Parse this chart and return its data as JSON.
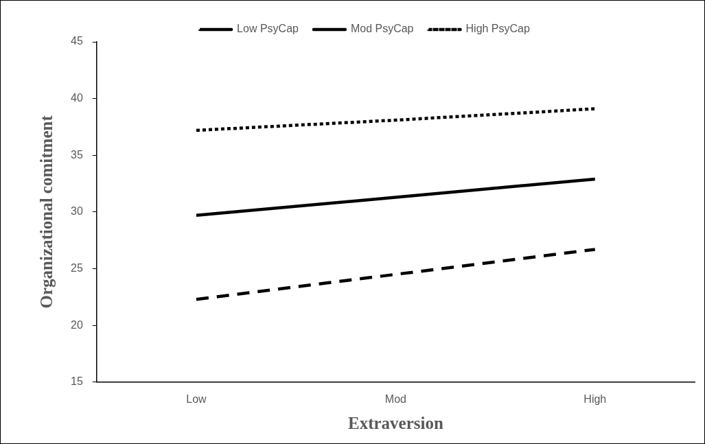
{
  "chart_data": {
    "type": "line",
    "xlabel": "Extraversion",
    "ylabel": "Organizational comitment",
    "categories": [
      "Low",
      "Mod",
      "High"
    ],
    "series": [
      {
        "name": "Low PsyCap",
        "color": "#000000",
        "line_style": "dashed",
        "values": [
          22.3,
          24.5,
          26.7
        ]
      },
      {
        "name": "Mod PsyCap",
        "color": "#000000",
        "line_style": "solid",
        "values": [
          29.7,
          31.3,
          32.9
        ]
      },
      {
        "name": "High PsyCap",
        "color": "#000000",
        "line_style": "dotted",
        "values": [
          37.2,
          38.1,
          39.1
        ]
      }
    ],
    "ylim": [
      15,
      45
    ],
    "yticks": [
      15,
      20,
      25,
      30,
      35,
      40,
      45
    ],
    "grid": false,
    "legend": "top",
    "marker": "none"
  }
}
